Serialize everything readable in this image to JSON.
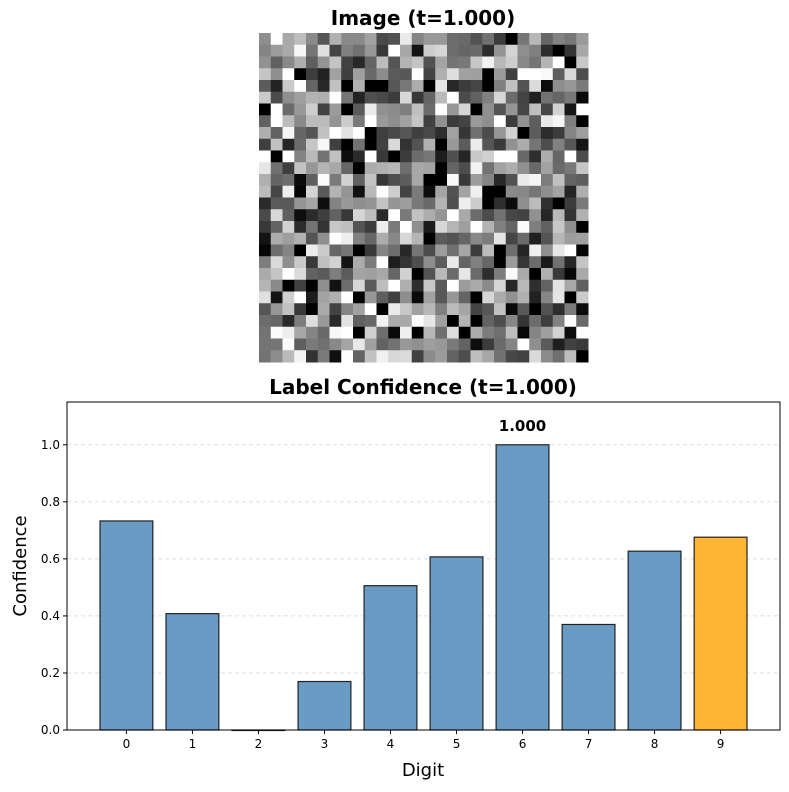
{
  "image_panel": {
    "title": "Image (t=1.000)",
    "grid_size": 28,
    "colormap": "gray"
  },
  "chart_data": {
    "type": "bar",
    "title": "Label Confidence (t=1.000)",
    "xlabel": "Digit",
    "ylabel": "Confidence",
    "categories": [
      "0",
      "1",
      "2",
      "3",
      "4",
      "5",
      "6",
      "7",
      "8",
      "9"
    ],
    "values": [
      0.733,
      0.408,
      0.0,
      0.17,
      0.506,
      0.607,
      1.0,
      0.37,
      0.627,
      0.676
    ],
    "ylim": [
      0,
      1.15
    ],
    "yticks": [
      "0.0",
      "0.2",
      "0.4",
      "0.6",
      "0.8",
      "1.0"
    ],
    "grid": "y-dashed",
    "bar_colors": {
      "default": "#6a9bc5",
      "highlight": "#ffb533",
      "edge": "#222222"
    },
    "highlight_index": 9,
    "annotation": {
      "index": 6,
      "text": "1.000"
    }
  }
}
